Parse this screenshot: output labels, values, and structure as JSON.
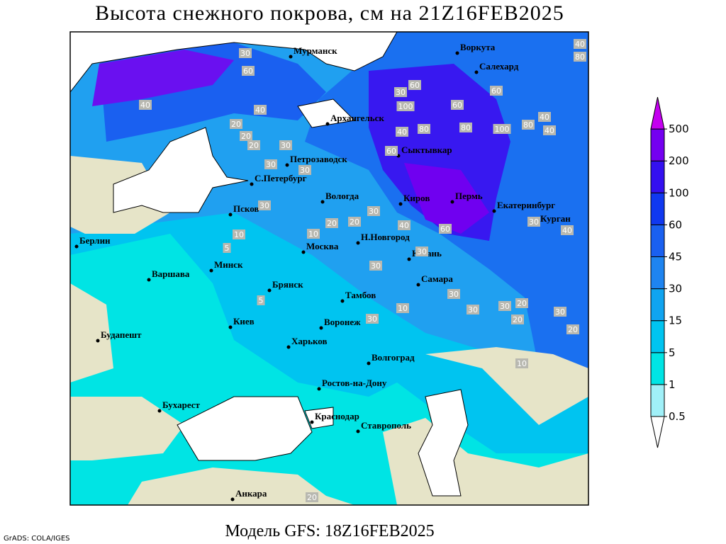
{
  "header": {
    "title": "Высота снежного покрова, см на 21Z16FEB2025"
  },
  "footer": {
    "model": "Модель GFS: 18Z16FEB2025",
    "credit": "GrADS: COLA/IGES"
  },
  "legend": {
    "levels": [
      0.5,
      1,
      5,
      15,
      30,
      45,
      60,
      100,
      200,
      500
    ],
    "colors": [
      "#ffffff",
      "#a0f0f8",
      "#00e4e4",
      "#00c4f0",
      "#10a4f0",
      "#1e84f0",
      "#1a60f0",
      "#1038f0",
      "#3410f0",
      "#7400f0",
      "#c400f0"
    ]
  },
  "cities": [
    "Мурманск",
    "Воркута",
    "Салехард",
    "Архангельск",
    "Сыктывкар",
    "Петрозаводск",
    "С.Петербург",
    "Вологда",
    "Киров",
    "Пермь",
    "Екатеринбург",
    "Курган",
    "Псков",
    "Берлин",
    "Н.Новгород",
    "Москва",
    "Казань",
    "Минск",
    "Варшава",
    "Самара",
    "Брянск",
    "Тамбов",
    "Киев",
    "Воронеж",
    "Будапешт",
    "Харьков",
    "Волгоград",
    "Ростов-на-Дону",
    "Бухарест",
    "Краснодар",
    "Ставрополь",
    "Анкара"
  ],
  "contour_labels": [
    40,
    80,
    30,
    60,
    40,
    20,
    20,
    40,
    60,
    30,
    100,
    80,
    40,
    80,
    100,
    80,
    40,
    40,
    60,
    60,
    30,
    30,
    60,
    30,
    20,
    20,
    30,
    40,
    30,
    30,
    10,
    5,
    10,
    30,
    10,
    30,
    30,
    40,
    30,
    20,
    20,
    30,
    30,
    20,
    20,
    10,
    5,
    20,
    30,
    60
  ]
}
